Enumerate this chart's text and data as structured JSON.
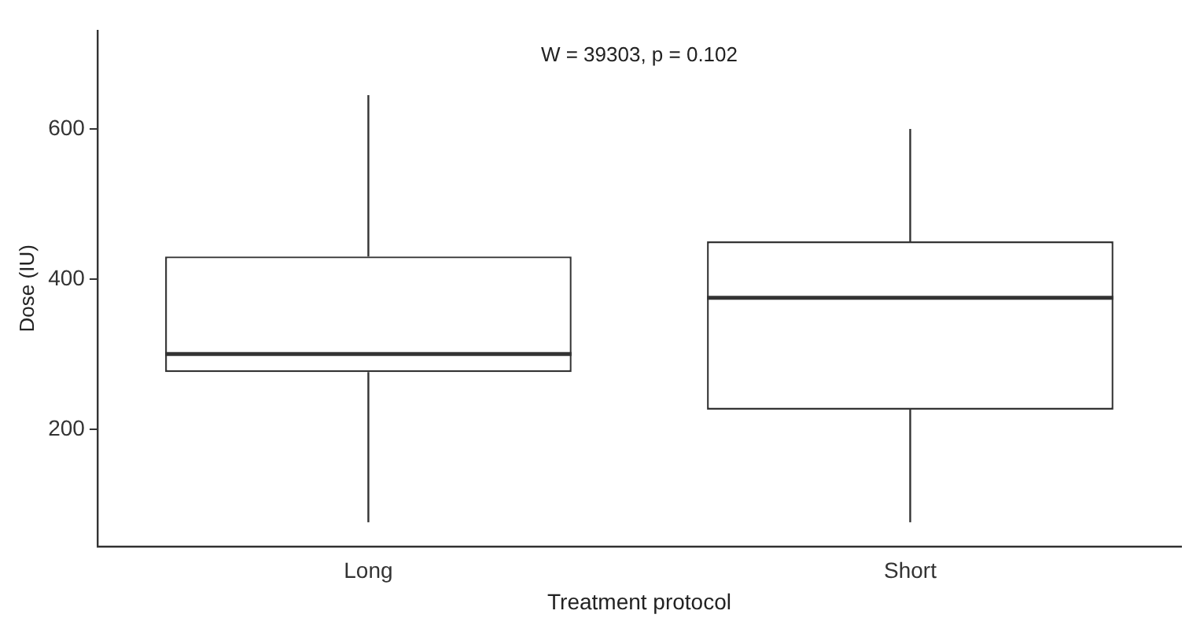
{
  "chart_data": {
    "type": "box",
    "xlabel": "Treatment protocol",
    "ylabel": "Dose (IU)",
    "annotations": [
      "W = 39303, p = 0.102"
    ],
    "categories": [
      "Long",
      "Short"
    ],
    "boxes": [
      {
        "low": 76,
        "q1": 276,
        "median": 300,
        "q3": 430,
        "high": 645
      },
      {
        "low": 76,
        "q1": 226,
        "median": 375,
        "q3": 450,
        "high": 600
      }
    ],
    "color": "#333333",
    "ylim": [
      44,
      731
    ],
    "yticks": [
      200,
      400,
      600
    ],
    "grid": false,
    "legend": false
  }
}
